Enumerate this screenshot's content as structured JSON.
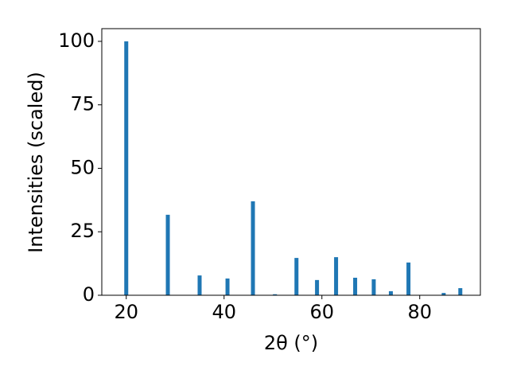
{
  "chart_data": {
    "type": "bar",
    "x_label": "2θ (°)",
    "y_label": "Intensities (scaled)",
    "x": [
      20.0,
      28.5,
      35.0,
      40.7,
      45.9,
      50.4,
      54.8,
      59.0,
      62.9,
      66.8,
      70.6,
      74.1,
      77.7,
      84.9,
      88.3
    ],
    "values": [
      100,
      31.7,
      7.8,
      6.6,
      37.0,
      0.4,
      14.7,
      6.0,
      15.0,
      6.9,
      6.3,
      1.6,
      12.9,
      0.9,
      2.8
    ],
    "color": "#1f77b4",
    "xlim": [
      15,
      92.4
    ],
    "xticks": [
      20,
      40,
      60,
      80
    ],
    "ylim": [
      0,
      105
    ],
    "yticks": [
      0,
      25,
      50,
      75,
      100
    ],
    "grid": false
  }
}
